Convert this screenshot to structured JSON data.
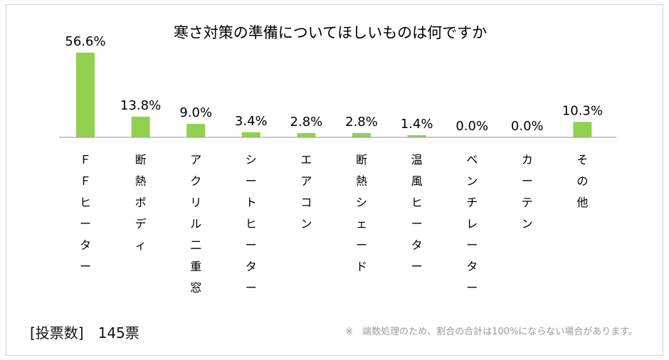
{
  "chart_data": {
    "type": "bar",
    "title": "寒さ対策の準備についてほしいものは何ですか",
    "categories": [
      "ＦＦヒーター",
      "断熱ボディ",
      "アクリル二重窓",
      "シートヒーター",
      "エアコン",
      "断熱シェード",
      "温風ヒーター",
      "ベンチレーター",
      "カーテン",
      "その他"
    ],
    "values": [
      56.6,
      13.8,
      9.0,
      3.4,
      2.8,
      2.8,
      1.4,
      0.0,
      0.0,
      10.3
    ],
    "value_labels": [
      "56.6%",
      "13.8%",
      "9.0%",
      "3.4%",
      "2.8%",
      "2.8%",
      "1.4%",
      "0.0%",
      "0.0%",
      "10.3%"
    ],
    "ylim": [
      0,
      56.6
    ],
    "grid": false,
    "bar_color": "#92d050",
    "axis_color": "#a6a6a6"
  },
  "footer": {
    "votes_label": "[投票数]　145票",
    "note": "※　端数処理のため、割合の合計は100%にならない場合があります。"
  }
}
